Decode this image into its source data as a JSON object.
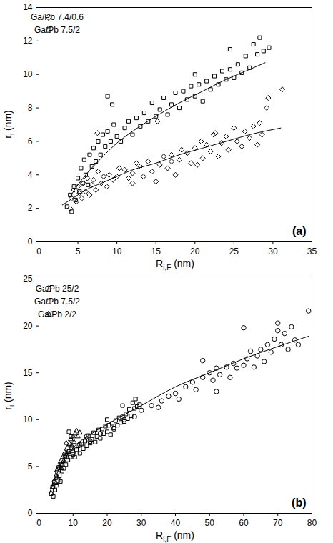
{
  "chart_data": [
    {
      "type": "scatter",
      "annotation": "(a)",
      "xlabel": {
        "base": "R",
        "sub": "i,F",
        "rest": " (nm)"
      },
      "ylabel": {
        "base": "r",
        "sub": "i",
        "rest": " (nm)"
      },
      "xlim": [
        0,
        35
      ],
      "xticks": [
        0,
        5,
        10,
        15,
        20,
        25,
        30,
        35
      ],
      "ylim": [
        0,
        14
      ],
      "yticks": [
        0,
        2,
        4,
        6,
        8,
        10,
        12,
        14
      ],
      "legend": "top-left",
      "series": [
        {
          "name": "Ga/Pb 7.4/0.6",
          "type": "scatter",
          "marker": "diamond",
          "color": "#000000",
          "x": [
            4,
            4.2,
            4.5,
            4.8,
            5,
            5.2,
            5.5,
            5.7,
            6,
            6.2,
            6.5,
            6.8,
            7,
            7.3,
            7.6,
            8,
            8.3,
            8.7,
            9,
            9.5,
            10,
            10.3,
            11,
            11.5,
            12,
            12.5,
            13,
            13.4,
            14,
            14.5,
            15,
            15.5,
            16,
            16.5,
            17,
            17.5,
            18,
            18.3,
            19,
            19.5,
            20,
            20.3,
            20.8,
            21,
            21.5,
            22,
            22.4,
            23,
            23.4,
            24,
            24.3,
            25,
            25.4,
            26,
            26.4,
            27,
            27.5,
            28,
            28.3,
            28.6,
            29.2,
            29.4,
            31.2,
            15.2,
            12,
            17,
            22.6,
            7.5
          ],
          "values": [
            2.0,
            2.6,
            3.1,
            2.4,
            3.3,
            2.9,
            2.6,
            3.5,
            3.0,
            3.8,
            2.8,
            3.4,
            3.7,
            3.1,
            4.2,
            3.5,
            3.9,
            3.3,
            4.0,
            3.7,
            3.9,
            4.4,
            4.3,
            3.8,
            4.1,
            4.7,
            4.5,
            3.9,
            4.8,
            4.2,
            3.6,
            4.6,
            5.1,
            4.4,
            5.2,
            4.0,
            4.9,
            5.5,
            5.3,
            4.7,
            5.6,
            4.6,
            6.0,
            5.0,
            5.8,
            5.4,
            6.4,
            5.1,
            5.9,
            6.3,
            5.5,
            6.8,
            6.0,
            5.7,
            6.6,
            6.2,
            6.9,
            5.8,
            7.1,
            6.4,
            8.0,
            8.6,
            9.1,
            7.2,
            3.5,
            4.8,
            6.5,
            6.5
          ]
        },
        {
          "name": "Ga/Pb 7.5/2",
          "type": "scatter",
          "marker": "square",
          "color": "#000000",
          "x": [
            3.6,
            4,
            4.2,
            4.5,
            4.7,
            5,
            5.2,
            5.4,
            5.6,
            5.8,
            6,
            6.3,
            6.5,
            6.8,
            7,
            7.3,
            7.6,
            7.9,
            8.2,
            8.5,
            8.8,
            9.2,
            9.6,
            10,
            10.5,
            11,
            11.5,
            12,
            12.5,
            13,
            13.5,
            14,
            14.5,
            15,
            15.5,
            16,
            16.5,
            17,
            17.5,
            18,
            18.5,
            19,
            19.5,
            20,
            20.5,
            21,
            21.5,
            22,
            22.5,
            23,
            23.5,
            24,
            24.5,
            25,
            25.5,
            26,
            26.5,
            27,
            27.5,
            28,
            28.3,
            28.8,
            29.5,
            8.8,
            9.4,
            20,
            24.5
          ],
          "values": [
            2.1,
            2.8,
            1.8,
            3.3,
            2.5,
            3.8,
            3.0,
            4.4,
            3.5,
            4.9,
            4.0,
            3.4,
            5.2,
            4.5,
            5.6,
            4.8,
            6.0,
            5.2,
            6.4,
            5.7,
            6.6,
            6.0,
            7.0,
            6.3,
            6.0,
            6.8,
            7.2,
            6.4,
            7.4,
            6.9,
            7.7,
            7.2,
            8.3,
            7.5,
            7.9,
            8.6,
            7.6,
            8.2,
            8.9,
            8.0,
            9.0,
            8.5,
            9.3,
            8.7,
            9.4,
            8.4,
            9.6,
            9.1,
            9.9,
            9.4,
            10.2,
            9.7,
            10.3,
            9.8,
            10.6,
            10.1,
            11.1,
            10.4,
            11.8,
            11.2,
            12.2,
            11.4,
            11.6,
            8.7,
            8.2,
            10.0,
            11.5
          ]
        },
        {
          "type": "line",
          "line_style": "solid",
          "color": "#000000",
          "x": [
            3,
            4,
            5,
            6,
            8,
            10,
            12,
            15,
            18,
            21,
            24,
            27,
            31
          ],
          "values": [
            2.2,
            2.5,
            2.8,
            3.1,
            3.5,
            3.9,
            4.3,
            4.7,
            5.2,
            5.6,
            6.0,
            6.4,
            6.8
          ]
        },
        {
          "type": "line",
          "line_style": "solid",
          "color": "#000000",
          "x": [
            4,
            5,
            6,
            8,
            10,
            12,
            15,
            18,
            21,
            24,
            27,
            29
          ],
          "values": [
            2.7,
            3.4,
            4.0,
            5.0,
            5.9,
            6.6,
            7.5,
            8.3,
            9.0,
            9.7,
            10.3,
            10.7
          ]
        }
      ]
    },
    {
      "type": "scatter",
      "annotation": "(b)",
      "xlabel": {
        "base": "R",
        "sub": "i,F",
        "rest": " (nm)"
      },
      "ylabel": {
        "base": "r",
        "sub": "i",
        "rest": " (nm)"
      },
      "xlim": [
        0,
        80
      ],
      "xticks": [
        0,
        10,
        20,
        30,
        40,
        50,
        60,
        70,
        80
      ],
      "ylim": [
        0,
        25
      ],
      "yticks": [
        0,
        5,
        10,
        15,
        20,
        25
      ],
      "legend": "top-left",
      "series": [
        {
          "name": "Ga/Pb 25/2",
          "type": "scatter",
          "marker": "circle",
          "color": "#000000",
          "x": [
            22,
            25,
            28,
            30,
            33,
            35,
            36,
            38,
            40,
            41,
            43,
            45,
            46,
            48,
            50,
            51,
            52,
            53,
            55,
            56,
            57,
            58,
            60,
            60,
            61,
            62,
            63,
            64,
            65,
            66,
            67,
            68,
            69,
            70,
            70,
            71,
            72,
            73,
            74,
            75,
            76,
            79,
            52,
            48,
            15,
            18,
            12,
            10,
            14
          ],
          "values": [
            9.0,
            10.0,
            10.3,
            11.0,
            11.5,
            11.3,
            12.0,
            12.5,
            12.8,
            12.2,
            13.5,
            14.0,
            13.2,
            14.5,
            15.0,
            14.2,
            15.5,
            14.8,
            15.6,
            14.5,
            16.0,
            15.5,
            15.8,
            19.8,
            16.5,
            17.3,
            15.6,
            16.8,
            17.5,
            16.2,
            18.0,
            17.2,
            18.6,
            19.5,
            20.3,
            18.0,
            19.2,
            17.5,
            19.9,
            18.5,
            18.0,
            21.6,
            13.0,
            16.3,
            7.7,
            8.5,
            7.3,
            6.5,
            8.2
          ]
        },
        {
          "name": "Ga/Pb 7.5/2",
          "type": "scatter",
          "marker": "square",
          "color": "#000000",
          "x": [
            3.6,
            4,
            4.2,
            4.5,
            4.7,
            5,
            5.2,
            5.4,
            5.6,
            5.8,
            6,
            6.3,
            6.5,
            6.8,
            7,
            7.3,
            7.6,
            7.9,
            8.2,
            8.5,
            8.8,
            9.2,
            9.6,
            10,
            10.5,
            11,
            11.5,
            12,
            12.5,
            13,
            13.5,
            14,
            14.5,
            15,
            15.5,
            16,
            16.5,
            17,
            17.5,
            18,
            18.5,
            19,
            19.5,
            20,
            20.5,
            21,
            21.5,
            22,
            22.5,
            23,
            23.5,
            24,
            24.5,
            25,
            25.5,
            26,
            26.5,
            27,
            27.5,
            28,
            28.3,
            28.8,
            29.5,
            8.8,
            9.4,
            20,
            24.5
          ],
          "values": [
            2.1,
            2.8,
            1.8,
            3.3,
            2.5,
            3.8,
            3.0,
            4.4,
            3.5,
            4.9,
            4.0,
            3.4,
            5.2,
            4.5,
            5.6,
            4.8,
            6.0,
            5.2,
            6.4,
            5.7,
            6.6,
            6.0,
            7.0,
            6.3,
            6.0,
            6.8,
            7.2,
            6.4,
            7.4,
            6.9,
            7.7,
            7.2,
            8.3,
            7.5,
            7.9,
            8.6,
            7.6,
            8.2,
            8.9,
            8.0,
            9.0,
            8.5,
            9.3,
            8.7,
            9.4,
            8.4,
            9.6,
            9.1,
            9.9,
            9.4,
            10.2,
            9.7,
            10.3,
            9.8,
            10.6,
            10.1,
            11.1,
            10.4,
            11.8,
            11.2,
            12.2,
            11.4,
            11.6,
            8.7,
            8.2,
            10.0,
            11.5
          ]
        },
        {
          "name": "Ga/Pb 2/2",
          "type": "scatter",
          "marker": "triangle",
          "color": "#000000",
          "x": [
            3.5,
            4,
            4.5,
            5,
            5.3,
            5.6,
            6,
            6.3,
            6.6,
            7,
            7.3,
            7.6,
            8,
            8.3,
            8.6,
            9,
            9.3,
            9.6,
            10,
            10.3,
            10.6,
            11,
            11.4,
            12,
            5,
            6.8,
            8
          ],
          "values": [
            2.2,
            2.8,
            3.5,
            4.0,
            4.6,
            3.8,
            5.0,
            5.5,
            4.8,
            6.0,
            5.6,
            6.5,
            6.2,
            7.0,
            6.6,
            7.4,
            7.9,
            7.2,
            8.2,
            7.6,
            8.5,
            8.8,
            8.2,
            8.6,
            3.2,
            5.2,
            7.5
          ]
        },
        {
          "type": "line",
          "line_style": "solid",
          "color": "#000000",
          "x": [
            3,
            4,
            5,
            7,
            10,
            15,
            20,
            30,
            40,
            50,
            60,
            70,
            79
          ],
          "values": [
            2.0,
            3.0,
            4.0,
            5.5,
            7.0,
            8.4,
            9.5,
            11.5,
            13.5,
            15.0,
            16.5,
            17.8,
            18.9
          ]
        }
      ]
    }
  ]
}
